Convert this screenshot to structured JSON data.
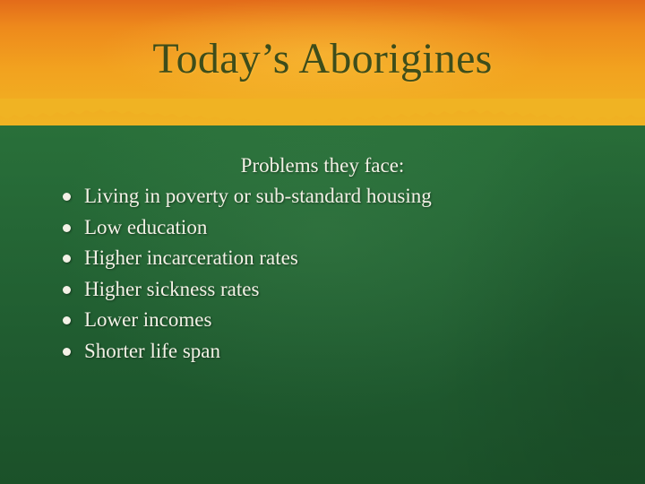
{
  "slide": {
    "title": "Today’s Aborigines",
    "subheading": "Problems they face:",
    "bullets": [
      "Living in poverty or sub-standard housing",
      "Low education",
      "Higher incarceration rates",
      "Higher sickness rates",
      "Lower incomes",
      "Shorter life span"
    ]
  },
  "colors": {
    "header_orange": "#ee8a1c",
    "header_yellow": "#f0b323",
    "body_green": "#276c38",
    "title_text": "#3e4d1a",
    "body_text": "#f3f1e6"
  }
}
